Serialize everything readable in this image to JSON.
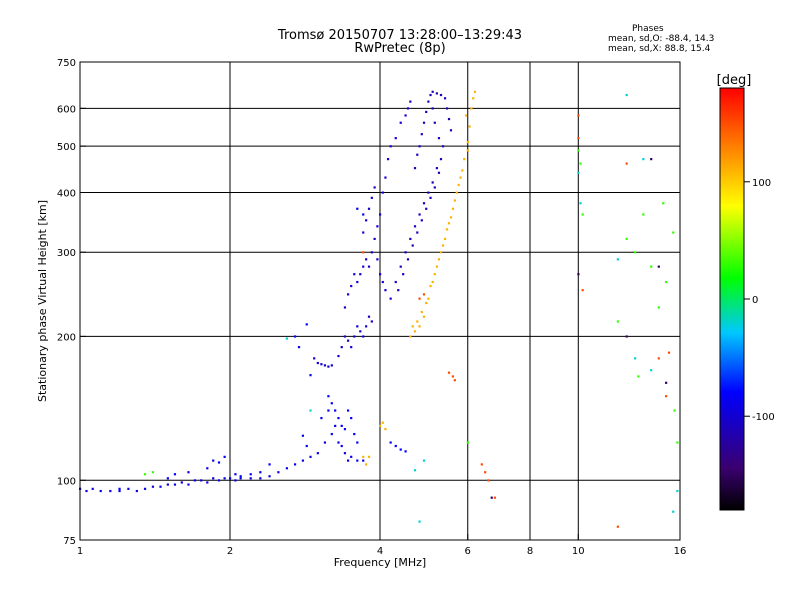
{
  "title_line1": "Tromsø 20150707 13:28:00–13:29:43",
  "title_line2": "RwPretec (8p)",
  "phases": {
    "heading": "Phases",
    "o_line": "mean, sd,O: -88.4, 14.3",
    "x_line": "mean, sd,X:  88.8, 15.4"
  },
  "chart_data": {
    "type": "scatter",
    "xlabel": "Frequency [MHz]",
    "ylabel": "Stationary phase Virtual Height [km]",
    "xscale": "log",
    "yscale": "log",
    "xlim": [
      1,
      16
    ],
    "ylim": [
      75,
      750
    ],
    "x_ticks": [
      1,
      2,
      4,
      6,
      8,
      10,
      16
    ],
    "y_ticks": [
      75,
      100,
      200,
      300,
      400,
      500,
      600,
      750
    ],
    "x_grid": [
      2,
      4,
      6,
      8,
      10
    ],
    "y_grid": [
      100,
      200,
      300,
      400,
      500,
      600
    ],
    "grid": true,
    "colorbar": {
      "label": "[deg]",
      "range": [
        -180,
        180
      ],
      "ticks": [
        100,
        0,
        -100
      ],
      "colors": [
        "#000000",
        "#3a0070",
        "#0000ff",
        "#00c8ff",
        "#00ff00",
        "#ffff00",
        "#ff8000",
        "#ff0000"
      ]
    },
    "series": [
      {
        "phase": -90,
        "points": [
          [
            1.0,
            96
          ],
          [
            1.03,
            95
          ],
          [
            1.06,
            96
          ],
          [
            1.1,
            95
          ],
          [
            1.15,
            95
          ],
          [
            1.2,
            95
          ],
          [
            1.25,
            96
          ],
          [
            1.3,
            95
          ],
          [
            1.35,
            96
          ],
          [
            1.4,
            97
          ],
          [
            1.45,
            97
          ],
          [
            1.5,
            98
          ],
          [
            1.55,
            98
          ],
          [
            1.6,
            99
          ],
          [
            1.65,
            98
          ],
          [
            1.7,
            100
          ],
          [
            1.75,
            100
          ],
          [
            1.8,
            99
          ],
          [
            1.85,
            101
          ],
          [
            1.9,
            100
          ],
          [
            1.95,
            101
          ],
          [
            2.0,
            101
          ],
          [
            2.05,
            100
          ],
          [
            2.1,
            101
          ],
          [
            2.2,
            101
          ],
          [
            2.3,
            101
          ],
          [
            2.4,
            102
          ],
          [
            2.5,
            104
          ],
          [
            2.6,
            106
          ],
          [
            2.7,
            108
          ],
          [
            2.8,
            110
          ],
          [
            2.9,
            112
          ],
          [
            3.0,
            114
          ],
          [
            3.1,
            120
          ],
          [
            3.2,
            125
          ],
          [
            3.25,
            130
          ],
          [
            3.3,
            120
          ],
          [
            3.35,
            118
          ],
          [
            3.4,
            114
          ],
          [
            3.45,
            110
          ],
          [
            3.5,
            112
          ],
          [
            3.6,
            110
          ],
          [
            3.7,
            110
          ],
          [
            1.8,
            106
          ],
          [
            1.85,
            110
          ],
          [
            1.65,
            104
          ],
          [
            2.8,
            124
          ],
          [
            2.85,
            118
          ],
          [
            3.05,
            135
          ],
          [
            3.15,
            140
          ]
        ]
      },
      {
        "phase": -100,
        "points": [
          [
            2.95,
            180
          ],
          [
            3.0,
            176
          ],
          [
            3.05,
            175
          ],
          [
            3.1,
            174
          ],
          [
            3.15,
            173
          ],
          [
            3.2,
            174
          ],
          [
            3.3,
            182
          ],
          [
            3.35,
            190
          ],
          [
            3.4,
            200
          ],
          [
            3.45,
            196
          ],
          [
            3.5,
            190
          ],
          [
            3.55,
            200
          ],
          [
            3.6,
            210
          ],
          [
            3.65,
            205
          ],
          [
            3.7,
            200
          ],
          [
            3.75,
            210
          ],
          [
            3.8,
            220
          ],
          [
            3.85,
            215
          ],
          [
            3.4,
            230
          ],
          [
            3.45,
            245
          ],
          [
            3.5,
            255
          ],
          [
            3.55,
            270
          ],
          [
            3.6,
            260
          ],
          [
            3.65,
            270
          ],
          [
            3.7,
            280
          ],
          [
            3.75,
            290
          ],
          [
            3.8,
            280
          ],
          [
            3.85,
            300
          ],
          [
            3.9,
            320
          ],
          [
            3.95,
            340
          ],
          [
            4.0,
            360
          ],
          [
            4.05,
            400
          ],
          [
            4.1,
            430
          ],
          [
            4.15,
            470
          ],
          [
            4.2,
            500
          ],
          [
            4.3,
            520
          ],
          [
            4.4,
            560
          ],
          [
            4.5,
            580
          ],
          [
            4.6,
            620
          ],
          [
            4.55,
            600
          ],
          [
            3.95,
            290
          ],
          [
            4.0,
            270
          ],
          [
            4.05,
            260
          ],
          [
            4.1,
            250
          ],
          [
            4.2,
            240
          ],
          [
            3.7,
            330
          ],
          [
            3.75,
            350
          ],
          [
            3.8,
            370
          ],
          [
            3.85,
            390
          ],
          [
            3.9,
            410
          ]
        ]
      },
      {
        "phase": -110,
        "points": [
          [
            4.3,
            260
          ],
          [
            4.4,
            280
          ],
          [
            4.5,
            300
          ],
          [
            4.6,
            320
          ],
          [
            4.7,
            340
          ],
          [
            4.8,
            360
          ],
          [
            4.9,
            380
          ],
          [
            5.0,
            400
          ],
          [
            5.1,
            420
          ],
          [
            5.2,
            450
          ],
          [
            4.35,
            250
          ],
          [
            4.45,
            270
          ],
          [
            4.55,
            290
          ],
          [
            4.65,
            310
          ],
          [
            4.75,
            330
          ],
          [
            4.85,
            350
          ],
          [
            4.95,
            370
          ],
          [
            5.05,
            390
          ],
          [
            5.15,
            410
          ],
          [
            5.25,
            440
          ],
          [
            4.7,
            450
          ],
          [
            4.75,
            480
          ],
          [
            4.8,
            500
          ],
          [
            4.85,
            530
          ],
          [
            4.9,
            560
          ],
          [
            4.95,
            590
          ],
          [
            5.0,
            620
          ],
          [
            5.05,
            640
          ],
          [
            5.1,
            650
          ],
          [
            5.2,
            645
          ],
          [
            5.3,
            640
          ],
          [
            5.4,
            630
          ],
          [
            5.45,
            600
          ],
          [
            5.5,
            570
          ],
          [
            5.55,
            540
          ],
          [
            5.35,
            500
          ],
          [
            5.3,
            470
          ],
          [
            5.25,
            520
          ],
          [
            5.15,
            560
          ],
          [
            5.1,
            600
          ]
        ]
      },
      {
        "phase": -80,
        "points": [
          [
            3.15,
            150
          ],
          [
            3.2,
            145
          ],
          [
            3.25,
            140
          ],
          [
            3.3,
            135
          ],
          [
            3.35,
            130
          ],
          [
            3.4,
            128
          ],
          [
            3.45,
            140
          ],
          [
            3.5,
            135
          ],
          [
            3.55,
            125
          ],
          [
            3.6,
            120
          ],
          [
            2.7,
            200
          ],
          [
            2.85,
            212
          ],
          [
            2.75,
            190
          ],
          [
            2.9,
            166
          ],
          [
            3.6,
            370
          ],
          [
            3.7,
            360
          ],
          [
            4.2,
            120
          ],
          [
            4.3,
            118
          ],
          [
            4.4,
            116
          ],
          [
            4.5,
            115
          ],
          [
            2.4,
            108
          ],
          [
            2.3,
            104
          ],
          [
            2.2,
            103
          ],
          [
            1.95,
            112
          ],
          [
            1.9,
            109
          ],
          [
            1.55,
            103
          ],
          [
            1.5,
            101
          ],
          [
            1.2,
            96
          ],
          [
            2.05,
            103
          ],
          [
            2.1,
            102
          ]
        ]
      },
      {
        "phase": 110,
        "points": [
          [
            4.6,
            200
          ],
          [
            4.7,
            205
          ],
          [
            4.8,
            210
          ],
          [
            4.9,
            220
          ],
          [
            5.0,
            240
          ],
          [
            5.1,
            260
          ],
          [
            5.2,
            280
          ],
          [
            5.3,
            300
          ],
          [
            5.4,
            320
          ],
          [
            5.5,
            345
          ],
          [
            5.6,
            370
          ],
          [
            5.7,
            400
          ],
          [
            5.8,
            430
          ],
          [
            5.9,
            470
          ],
          [
            6.0,
            510
          ],
          [
            6.05,
            550
          ],
          [
            6.1,
            600
          ],
          [
            6.15,
            630
          ],
          [
            6.2,
            650
          ],
          [
            5.95,
            580
          ],
          [
            4.65,
            210
          ],
          [
            4.75,
            215
          ],
          [
            4.85,
            225
          ],
          [
            4.95,
            235
          ],
          [
            5.05,
            255
          ],
          [
            5.15,
            270
          ],
          [
            5.25,
            290
          ],
          [
            5.35,
            310
          ],
          [
            5.45,
            335
          ],
          [
            5.55,
            355
          ],
          [
            5.65,
            385
          ],
          [
            5.75,
            415
          ],
          [
            5.85,
            445
          ],
          [
            6.0,
            490
          ],
          [
            4.0,
            130
          ],
          [
            4.05,
            132
          ],
          [
            4.1,
            128
          ],
          [
            3.7,
            112
          ],
          [
            3.8,
            112
          ],
          [
            3.75,
            108
          ]
        ]
      },
      {
        "phase": 150,
        "points": [
          [
            5.6,
            165
          ],
          [
            5.65,
            162
          ],
          [
            4.8,
            240
          ],
          [
            4.9,
            245
          ],
          [
            6.8,
            92
          ],
          [
            10.0,
            580
          ],
          [
            10.0,
            520
          ],
          [
            12.5,
            460
          ],
          [
            14.5,
            180
          ],
          [
            15.2,
            185
          ],
          [
            5.5,
            168
          ],
          [
            6.4,
            108
          ],
          [
            6.5,
            104
          ],
          [
            6.6,
            100
          ],
          [
            15.0,
            150
          ],
          [
            12.0,
            80
          ],
          [
            10.2,
            250
          ],
          [
            3.7,
            300
          ]
        ]
      },
      {
        "phase": 30,
        "points": [
          [
            12.5,
            320
          ],
          [
            13.0,
            300
          ],
          [
            13.5,
            360
          ],
          [
            14.0,
            280
          ],
          [
            14.5,
            230
          ],
          [
            15.0,
            260
          ],
          [
            15.5,
            330
          ],
          [
            15.8,
            120
          ],
          [
            12.0,
            215
          ],
          [
            13.2,
            165
          ],
          [
            10.1,
            460
          ],
          [
            10.0,
            490
          ],
          [
            1.4,
            104
          ],
          [
            1.35,
            103
          ],
          [
            6.0,
            120
          ],
          [
            10.2,
            360
          ],
          [
            14.8,
            380
          ],
          [
            15.6,
            140
          ]
        ]
      },
      {
        "phase": -20,
        "points": [
          [
            4.8,
            82
          ],
          [
            4.9,
            110
          ],
          [
            4.7,
            105
          ],
          [
            10.0,
            440
          ],
          [
            10.1,
            380
          ],
          [
            12.5,
            640
          ],
          [
            13.0,
            180
          ],
          [
            14.0,
            170
          ],
          [
            2.9,
            140
          ],
          [
            2.6,
            198
          ],
          [
            15.5,
            86
          ],
          [
            15.8,
            95
          ],
          [
            12.0,
            290
          ],
          [
            13.5,
            470
          ]
        ]
      },
      {
        "phase": -150,
        "points": [
          [
            14.0,
            470
          ],
          [
            14.5,
            280
          ],
          [
            15.0,
            160
          ],
          [
            10.0,
            270
          ],
          [
            12.5,
            200
          ],
          [
            6.7,
            92
          ]
        ]
      }
    ]
  }
}
